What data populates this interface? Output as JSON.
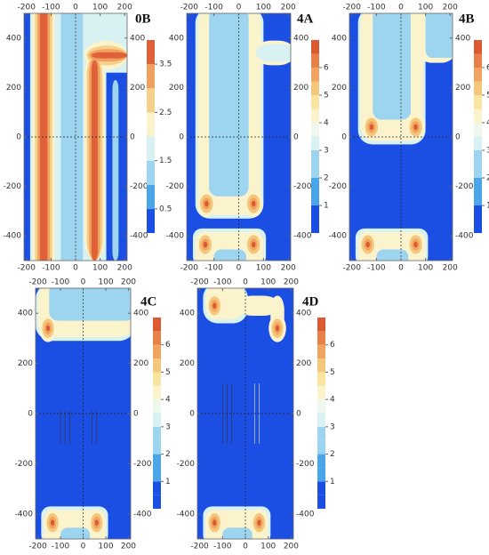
{
  "chart_data": [
    {
      "type": "contour",
      "title": "0B",
      "xlim": [
        -210,
        210
      ],
      "ylim": [
        -500,
        500
      ],
      "xticks": [
        -200,
        -100,
        0,
        100,
        200
      ],
      "yticks": [
        400,
        200,
        0,
        -200,
        -400
      ],
      "colorbar": {
        "lim": [
          0,
          4
        ],
        "ticks": [
          3.5,
          2.5,
          1.5,
          0.5
        ],
        "levels": [
          0,
          0.5,
          1,
          1.5,
          2,
          2.5,
          3,
          3.5,
          4
        ],
        "colors": [
          "#1b4fe4",
          "#4aa6e8",
          "#9dd4f0",
          "#d8f1f2",
          "#fbf3cc",
          "#f5d08a",
          "#f0a060",
          "#e0603a"
        ]
      }
    },
    {
      "type": "contour",
      "title": "4A",
      "xlim": [
        -210,
        210
      ],
      "ylim": [
        -500,
        500
      ],
      "xticks": [
        -200,
        -100,
        0,
        100,
        200
      ],
      "yticks": [
        400,
        200,
        0,
        -200,
        -400
      ],
      "colorbar": {
        "lim": [
          0,
          7
        ],
        "ticks": [
          6,
          5,
          4,
          3,
          2,
          1
        ],
        "levels": [
          0,
          0.5,
          1,
          1.5,
          2,
          2.5,
          3,
          3.5,
          4,
          4.5,
          5,
          5.5,
          6,
          6.5,
          7
        ],
        "colors": [
          "#1b4fe4",
          "#1b4fe4",
          "#4aa6e8",
          "#4aa6e8",
          "#9dd4f0",
          "#9dd4f0",
          "#d8f1f2",
          "#eef8ec",
          "#fbf3cc",
          "#f9e5a0",
          "#f5c77c",
          "#f0a460",
          "#e8804a",
          "#dc5a32"
        ]
      }
    },
    {
      "type": "contour",
      "title": "4B",
      "xlim": [
        -210,
        210
      ],
      "ylim": [
        -500,
        500
      ],
      "xticks": [
        -200,
        -100,
        0,
        100,
        200
      ],
      "yticks": [
        400,
        200,
        0,
        -200,
        -400
      ],
      "colorbar": {
        "lim": [
          0,
          7
        ],
        "ticks": [
          6,
          5,
          4,
          3,
          2,
          1
        ],
        "levels": [
          0,
          0.5,
          1,
          1.5,
          2,
          2.5,
          3,
          3.5,
          4,
          4.5,
          5,
          5.5,
          6,
          6.5,
          7
        ],
        "colors": [
          "#1b4fe4",
          "#1b4fe4",
          "#4aa6e8",
          "#4aa6e8",
          "#9dd4f0",
          "#9dd4f0",
          "#d8f1f2",
          "#eef8ec",
          "#fbf3cc",
          "#f9e5a0",
          "#f5c77c",
          "#f0a460",
          "#e8804a",
          "#dc5a32"
        ]
      }
    },
    {
      "type": "contour",
      "title": "4C",
      "xlim": [
        -210,
        210
      ],
      "ylim": [
        -500,
        500
      ],
      "xticks": [
        -200,
        -100,
        0,
        100,
        200
      ],
      "yticks": [
        400,
        200,
        0,
        -200,
        -400
      ],
      "colorbar": {
        "lim": [
          0,
          7
        ],
        "ticks": [
          6,
          5,
          4,
          3,
          2,
          1
        ],
        "levels": [
          0,
          0.5,
          1,
          1.5,
          2,
          2.5,
          3,
          3.5,
          4,
          4.5,
          5,
          5.5,
          6,
          6.5,
          7
        ],
        "colors": [
          "#1b4fe4",
          "#1b4fe4",
          "#4aa6e8",
          "#4aa6e8",
          "#9dd4f0",
          "#9dd4f0",
          "#d8f1f2",
          "#eef8ec",
          "#fbf3cc",
          "#f9e5a0",
          "#f5c77c",
          "#f0a460",
          "#e8804a",
          "#dc5a32"
        ]
      }
    },
    {
      "type": "contour",
      "title": "4D",
      "xlim": [
        -210,
        210
      ],
      "ylim": [
        -500,
        500
      ],
      "xticks": [
        -200,
        -100,
        0,
        100,
        200
      ],
      "yticks": [
        400,
        200,
        0,
        -200,
        -400
      ],
      "colorbar": {
        "lim": [
          0,
          7
        ],
        "ticks": [
          6,
          5,
          4,
          3,
          2,
          1
        ],
        "levels": [
          0,
          0.5,
          1,
          1.5,
          2,
          2.5,
          3,
          3.5,
          4,
          4.5,
          5,
          5.5,
          6,
          6.5,
          7
        ],
        "colors": [
          "#1b4fe4",
          "#1b4fe4",
          "#4aa6e8",
          "#4aa6e8",
          "#9dd4f0",
          "#9dd4f0",
          "#d8f1f2",
          "#eef8ec",
          "#fbf3cc",
          "#f9e5a0",
          "#f5c77c",
          "#f0a460",
          "#e8804a",
          "#dc5a32"
        ]
      }
    }
  ]
}
